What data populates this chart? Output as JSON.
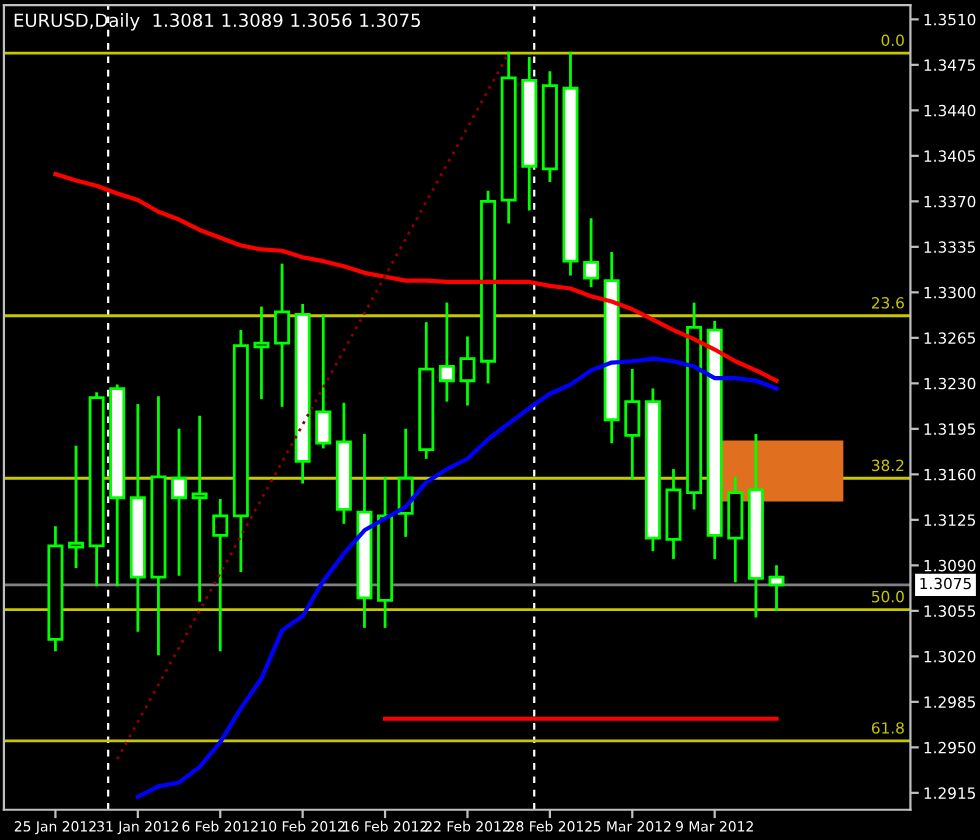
{
  "chart_data": {
    "type": "candlestick",
    "title": "EURUSD,Daily  1.3081 1.3089 1.3056 1.3075",
    "categories": [
      "25 Jan 2012",
      null,
      null,
      null,
      "31 Jan 2012",
      null,
      null,
      null,
      "6 Feb 2012",
      null,
      null,
      null,
      "10 Feb 2012",
      null,
      null,
      null,
      "16 Feb 2012",
      null,
      null,
      null,
      "22 Feb 2012",
      null,
      null,
      null,
      "28 Feb 2012",
      null,
      null,
      null,
      "5 Mar 2012",
      null,
      null,
      null,
      "9 Mar 2012",
      null,
      null,
      null
    ],
    "ohlc": [
      [
        1.3033,
        1.3119,
        1.3025,
        1.3105
      ],
      [
        1.3104,
        1.3181,
        1.3089,
        1.3107
      ],
      [
        1.3105,
        1.3222,
        1.3075,
        1.3219
      ],
      [
        1.3226,
        1.3228,
        1.3075,
        1.3142
      ],
      [
        1.3142,
        1.3213,
        1.304,
        1.3081
      ],
      [
        1.3081,
        1.3219,
        1.3022,
        1.3158
      ],
      [
        1.3157,
        1.3194,
        1.3083,
        1.3142
      ],
      [
        1.3142,
        1.3204,
        1.3063,
        1.3145
      ],
      [
        1.3113,
        1.314,
        1.3025,
        1.3128
      ],
      [
        1.3128,
        1.327,
        1.3086,
        1.3259
      ],
      [
        1.3258,
        1.3288,
        1.3219,
        1.3261
      ],
      [
        1.3261,
        1.3321,
        1.3213,
        1.3285
      ],
      [
        1.3283,
        1.329,
        1.3154,
        1.317
      ],
      [
        1.3208,
        1.3282,
        1.3181,
        1.3184
      ],
      [
        1.3185,
        1.3214,
        1.3123,
        1.3133
      ],
      [
        1.3131,
        1.319,
        1.3043,
        1.3065
      ],
      [
        1.3063,
        1.3157,
        1.3043,
        1.3128
      ],
      [
        1.313,
        1.3194,
        1.3113,
        1.3157
      ],
      [
        1.3179,
        1.3276,
        1.3173,
        1.3241
      ],
      [
        1.3243,
        1.3291,
        1.3217,
        1.3232
      ],
      [
        1.3232,
        1.3265,
        1.3214,
        1.3249
      ],
      [
        1.3247,
        1.3377,
        1.3231,
        1.337
      ],
      [
        1.3371,
        1.3484,
        1.3354,
        1.3465
      ],
      [
        1.3463,
        1.348,
        1.3364,
        1.3397
      ],
      [
        1.3395,
        1.3469,
        1.3386,
        1.3459
      ],
      [
        1.3457,
        1.3484,
        1.3314,
        1.3324
      ],
      [
        1.3323,
        1.3356,
        1.3305,
        1.3311
      ],
      [
        1.3309,
        1.333,
        1.3185,
        1.3202
      ],
      [
        1.319,
        1.324,
        1.3157,
        1.3216
      ],
      [
        1.3216,
        1.3225,
        1.3102,
        1.3111
      ],
      [
        1.311,
        1.3163,
        1.3096,
        1.3148
      ],
      [
        1.3146,
        1.3291,
        1.3134,
        1.3273
      ],
      [
        1.3271,
        1.3277,
        1.3096,
        1.3113
      ],
      [
        1.3111,
        1.3157,
        1.3078,
        1.3146
      ],
      [
        1.3148,
        1.319,
        1.3051,
        1.308
      ],
      [
        1.3081,
        1.3089,
        1.3056,
        1.3075
      ]
    ],
    "color": "#00ff00",
    "colors": [
      "#000000",
      "#000000",
      "#000000",
      "#ffffff",
      "#ffffff",
      "#000000",
      "#ffffff",
      "#000000",
      "#000000",
      "#000000",
      "#000000",
      "#000000",
      "#ffffff",
      "#ffffff",
      "#ffffff",
      "#ffffff",
      "#000000",
      "#000000",
      "#000000",
      "#ffffff",
      "#000000",
      "#000000",
      "#000000",
      "#ffffff",
      "#000000",
      "#ffffff",
      "#ffffff",
      "#ffffff",
      "#000000",
      "#ffffff",
      "#000000",
      "#000000",
      "#ffffff",
      "#000000",
      "#ffffff",
      "#ffffff"
    ],
    "series": [
      {
        "type": "line",
        "color": "#ff0000",
        "line_style": "solid",
        "values": [
          1.3391,
          1.3386,
          1.3382,
          1.3376,
          1.3371,
          1.3362,
          1.3356,
          1.3348,
          1.3342,
          1.3336,
          1.3333,
          1.3332,
          1.3327,
          1.3324,
          1.332,
          1.3315,
          1.3312,
          1.3309,
          1.3309,
          1.3308,
          1.3308,
          1.3308,
          1.3308,
          1.3308,
          1.3305,
          1.3303,
          1.3297,
          1.3293,
          1.3287,
          1.3279,
          1.3271,
          1.3264,
          1.3256,
          1.3247,
          1.324,
          1.3232
        ]
      },
      {
        "type": "line",
        "color": "#0000ff",
        "line_style": "solid",
        "values": [
          null,
          null,
          null,
          null,
          1.2912,
          1.292,
          1.2923,
          1.2935,
          1.2954,
          1.298,
          1.3003,
          1.304,
          1.3051,
          1.3078,
          1.3099,
          1.3117,
          1.3126,
          1.3135,
          1.3154,
          1.3164,
          1.3172,
          1.3187,
          1.3199,
          1.3211,
          1.3222,
          1.3229,
          1.324,
          1.3246,
          1.3247,
          1.3249,
          1.3247,
          1.3243,
          1.3234,
          1.3234,
          1.3232,
          1.3226
        ]
      },
      {
        "type": "line",
        "color": "#8b0000",
        "line_style": "dotted",
        "values": [
          null,
          null,
          null,
          1.2941,
          null,
          null,
          null,
          null,
          null,
          null,
          null,
          null,
          null,
          null,
          null,
          null,
          null,
          null,
          null,
          null,
          null,
          null,
          1.3484,
          null,
          null,
          null,
          null,
          null,
          null,
          null,
          null,
          null,
          null,
          null,
          null,
          null
        ]
      },
      {
        "type": "line",
        "color": "#ff0000",
        "line_style": "solid",
        "values": [
          null,
          null,
          null,
          null,
          null,
          null,
          null,
          null,
          null,
          null,
          null,
          null,
          null,
          null,
          null,
          null,
          1.2972,
          null,
          null,
          null,
          null,
          null,
          null,
          null,
          null,
          null,
          null,
          null,
          null,
          null,
          null,
          null,
          null,
          null,
          null,
          1.2972
        ]
      }
    ],
    "ylim": [
      1.2902,
      1.3521
    ],
    "yticks": [
      1.2915,
      {
        "value": 1.295,
        "label": "1.2950"
      },
      1.2985,
      {
        "value": 1.302,
        "label": "1.3020"
      },
      1.3055,
      {
        "value": 1.309,
        "label": "1.3090"
      },
      1.3125,
      {
        "value": 1.316,
        "label": "1.3160"
      },
      1.3195,
      {
        "value": 1.323,
        "label": "1.3230"
      },
      1.3265,
      {
        "value": 1.33,
        "label": "1.3300"
      },
      1.3335,
      {
        "value": 1.337,
        "label": "1.3370"
      },
      1.3405,
      {
        "value": 1.344,
        "label": "1.3440"
      },
      1.3475,
      {
        "value": 1.351,
        "label": "1.3510"
      }
    ],
    "ref_lines": [
      {
        "axis": "y",
        "value": 1.3484,
        "color": "#c8c800",
        "line_style": "solid"
      },
      {
        "axis": "y",
        "value": 1.3282,
        "color": "#c8c800",
        "line_style": "solid"
      },
      {
        "axis": "y",
        "value": 1.3157,
        "color": "#c8c800",
        "line_style": "solid"
      },
      {
        "axis": "y",
        "value": 1.3056,
        "color": "#c8c800",
        "line_style": "solid"
      },
      {
        "axis": "y",
        "value": 1.2955,
        "color": "#c8c800",
        "line_style": "solid"
      },
      {
        "axis": "y",
        "value": 1.3075,
        "label": "1.3075",
        "color": "#808080",
        "line_style": "solid"
      }
    ],
    "annotations": [
      {
        "text": "0.0",
        "y": 1.3484
      },
      {
        "text": "23.6",
        "y": 1.3282
      },
      {
        "text": "38.2",
        "y": 1.3157
      },
      {
        "text": "50.0",
        "y": 1.3056
      },
      {
        "text": "61.8",
        "y": 1.2955
      }
    ],
    "grid": false,
    "legend": false
  }
}
